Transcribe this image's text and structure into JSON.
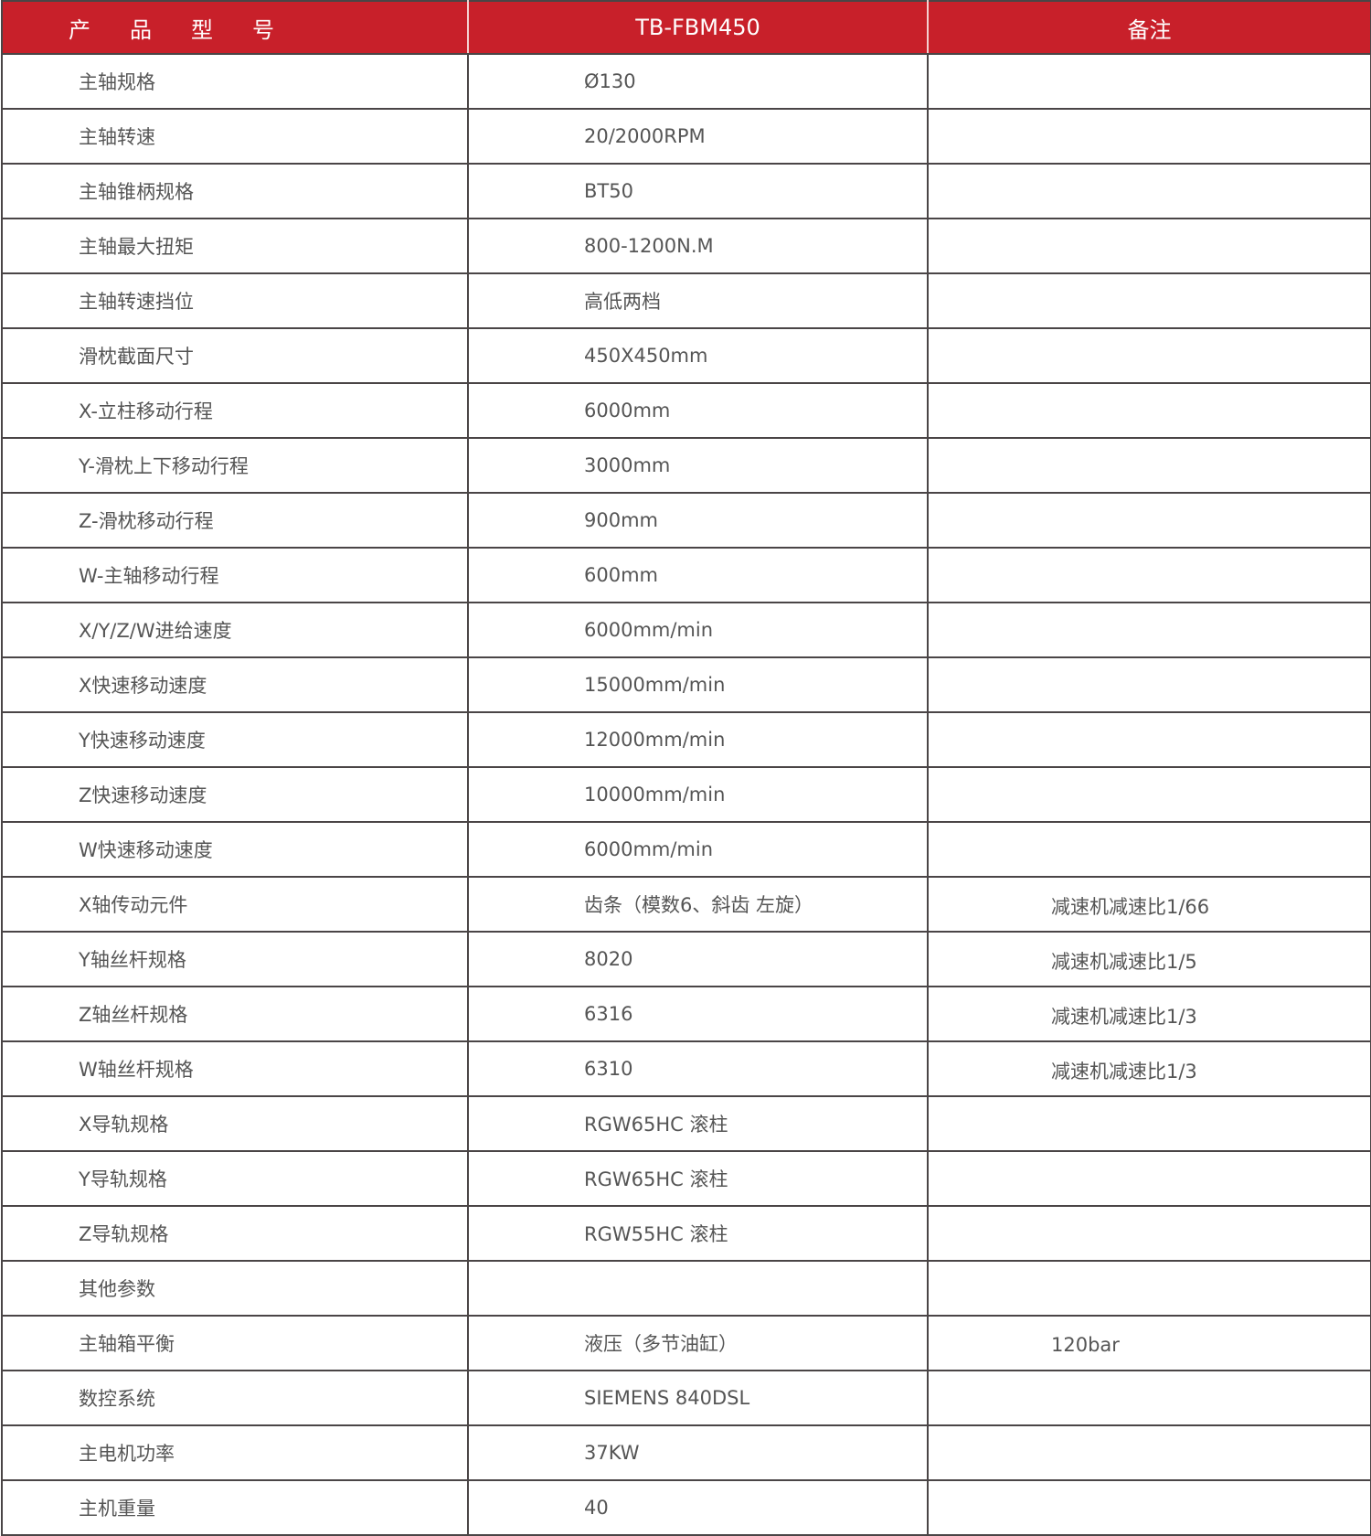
{
  "header": {
    "col1_chars": [
      "产",
      "品",
      "型",
      "号"
    ],
    "col1": "产品型号",
    "col2": "TB-FBM450",
    "col3": "备注"
  },
  "colors": {
    "header_bg": "#c8202a",
    "border": "#4a4546",
    "text": "#555555"
  },
  "rows": [
    {
      "param": "主轴规格",
      "value": "Ø130",
      "note": ""
    },
    {
      "param": "主轴转速",
      "value": "20/2000RPM",
      "note": ""
    },
    {
      "param": "主轴锥柄规格",
      "value": "BT50",
      "note": ""
    },
    {
      "param": "主轴最大扭矩",
      "value": "800-1200N.M",
      "note": ""
    },
    {
      "param": "主轴转速挡位",
      "value": "高低两档",
      "note": ""
    },
    {
      "param": "滑枕截面尺寸",
      "value": "450X450mm",
      "note": ""
    },
    {
      "param": "X-立柱移动行程",
      "value": "6000mm",
      "note": ""
    },
    {
      "param": "Y-滑枕上下移动行程",
      "value": "3000mm",
      "note": ""
    },
    {
      "param": "Z-滑枕移动行程",
      "value": "900mm",
      "note": ""
    },
    {
      "param": "W-主轴移动行程",
      "value": "600mm",
      "note": ""
    },
    {
      "param": "X/Y/Z/W进给速度",
      "value": "6000mm/min",
      "note": ""
    },
    {
      "param": "X快速移动速度",
      "value": "15000mm/min",
      "note": ""
    },
    {
      "param": "Y快速移动速度",
      "value": "12000mm/min",
      "note": ""
    },
    {
      "param": "Z快速移动速度",
      "value": "10000mm/min",
      "note": ""
    },
    {
      "param": "W快速移动速度",
      "value": "6000mm/min",
      "note": ""
    },
    {
      "param": "X轴传动元件",
      "value": "齿条（模数6、斜齿 左旋）",
      "note": "减速机减速比1/66"
    },
    {
      "param": "Y轴丝杆规格",
      "value": "8020",
      "note": "减速机减速比1/5"
    },
    {
      "param": "Z轴丝杆规格",
      "value": "6316",
      "note": "减速机减速比1/3"
    },
    {
      "param": "W轴丝杆规格",
      "value": "6310",
      "note": "减速机减速比1/3"
    },
    {
      "param": "X导轨规格",
      "value": "RGW65HC 滚柱",
      "note": ""
    },
    {
      "param": "Y导轨规格",
      "value": "RGW65HC 滚柱",
      "note": ""
    },
    {
      "param": "Z导轨规格",
      "value": "RGW55HC 滚柱",
      "note": ""
    },
    {
      "param": "其他参数",
      "value": "",
      "note": ""
    },
    {
      "param": "主轴箱平衡",
      "value": "液压（多节油缸）",
      "note": "120bar"
    },
    {
      "param": "数控系统",
      "value": "SIEMENS 840DSL",
      "note": ""
    },
    {
      "param": "主电机功率",
      "value": "37KW",
      "note": ""
    },
    {
      "param": "主机重量",
      "value": "40",
      "note": ""
    }
  ]
}
